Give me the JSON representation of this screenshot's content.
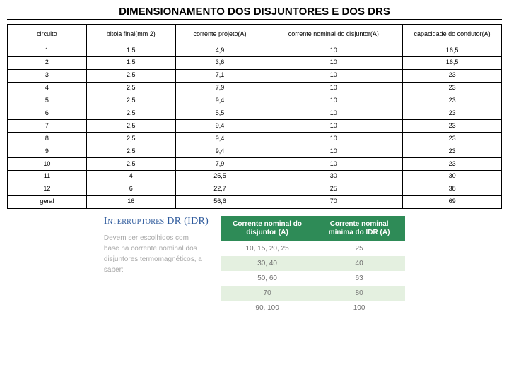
{
  "title": "DIMENSIONAMENTO DOS DISJUNTORES E DOS DRS",
  "main_table": {
    "columns": [
      "circuito",
      "bitola final(mm 2)",
      "corrente projeto(A)",
      "corrente nominal do disjuntor(A)",
      "capacidade do condutor(A)"
    ],
    "rows": [
      [
        "1",
        "1,5",
        "4,9",
        "10",
        "16,5"
      ],
      [
        "2",
        "1,5",
        "3,6",
        "10",
        "16,5"
      ],
      [
        "3",
        "2,5",
        "7,1",
        "10",
        "23"
      ],
      [
        "4",
        "2,5",
        "7,9",
        "10",
        "23"
      ],
      [
        "5",
        "2,5",
        "9,4",
        "10",
        "23"
      ],
      [
        "6",
        "2,5",
        "5,5",
        "10",
        "23"
      ],
      [
        "7",
        "2,5",
        "9,4",
        "10",
        "23"
      ],
      [
        "8",
        "2,5",
        "9,4",
        "10",
        "23"
      ],
      [
        "9",
        "2,5",
        "9,4",
        "10",
        "23"
      ],
      [
        "10",
        "2,5",
        "7,9",
        "10",
        "23"
      ],
      [
        "11",
        "4",
        "25,5",
        "30",
        "30"
      ],
      [
        "12",
        "6",
        "22,7",
        "25",
        "38"
      ],
      [
        "geral",
        "16",
        "56,6",
        "70",
        "69"
      ]
    ],
    "col_widths": [
      "16%",
      "18%",
      "18%",
      "28%",
      "20%"
    ]
  },
  "idr": {
    "heading": "Interruptores DR (IDR)",
    "description": "Devem ser escolhidos com base na corrente nominal dos disjuntores termomagnéticos, a saber:",
    "columns": [
      "Corrente nominal do disjuntor (A)",
      "Corrente nominal mínima do IDR (A)"
    ],
    "rows": [
      [
        "10, 15, 20, 25",
        "25"
      ],
      [
        "30, 40",
        "40"
      ],
      [
        "50, 60",
        "63"
      ],
      [
        "70",
        "80"
      ],
      [
        "90, 100",
        "100"
      ]
    ],
    "header_bg": "#2e8b57",
    "alt_bg": "#e4f0e0"
  }
}
